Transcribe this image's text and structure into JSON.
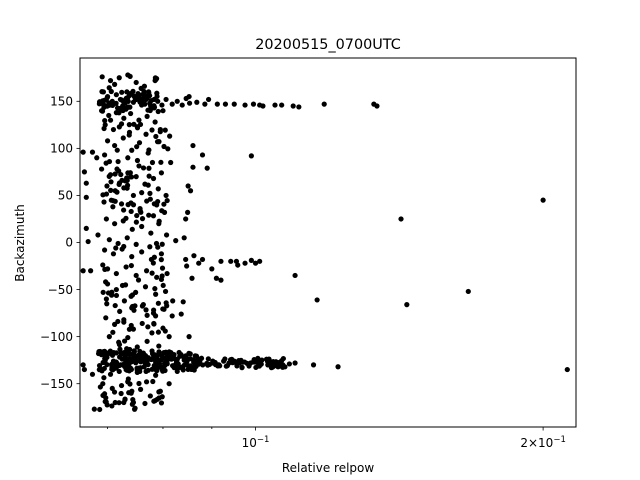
{
  "chart_data": {
    "type": "scatter",
    "title": "20200515_0700UTC",
    "xlabel": "Relative relpow",
    "ylabel": "Backazimuth",
    "x_scale": "log",
    "xlim": [
      0.0655,
      0.2165
    ],
    "ylim": [
      -196,
      196
    ],
    "x_ticks": [
      {
        "value": 0.1,
        "base": "10",
        "exp": "−1"
      },
      {
        "value": 0.2,
        "coef": "2×",
        "base": "10",
        "exp": "−1"
      }
    ],
    "x_minor_ticks": [
      0.07,
      0.08,
      0.09
    ],
    "y_ticks": [
      {
        "value": 150,
        "label": "150"
      },
      {
        "value": 100,
        "label": "100"
      },
      {
        "value": 50,
        "label": "50"
      },
      {
        "value": 0,
        "label": "0"
      },
      {
        "value": -50,
        "label": "−50"
      },
      {
        "value": -100,
        "label": "−100"
      },
      {
        "value": -150,
        "label": "−150"
      }
    ],
    "grid": false,
    "legend": "none",
    "marker_color": "#000000",
    "points": [
      [
        0.0691,
        176
      ],
      [
        0.0705,
        172
      ],
      [
        0.0712,
        168
      ],
      [
        0.072,
        175
      ],
      [
        0.0735,
        178
      ],
      [
        0.075,
        170
      ],
      [
        0.0765,
        166
      ],
      [
        0.0785,
        172
      ],
      [
        0.0693,
        160
      ],
      [
        0.07,
        155
      ],
      [
        0.0708,
        150
      ],
      [
        0.0715,
        157
      ],
      [
        0.0722,
        152
      ],
      [
        0.073,
        148
      ],
      [
        0.0738,
        158
      ],
      [
        0.0745,
        149
      ],
      [
        0.0752,
        154
      ],
      [
        0.076,
        146
      ],
      [
        0.0768,
        152
      ],
      [
        0.0775,
        148
      ],
      [
        0.0783,
        143
      ],
      [
        0.079,
        150
      ],
      [
        0.0798,
        146
      ],
      [
        0.0806,
        152
      ],
      [
        0.0818,
        147
      ],
      [
        0.0828,
        150
      ],
      [
        0.0838,
        146
      ],
      [
        0.0846,
        153
      ],
      [
        0.0853,
        148
      ],
      [
        0.0868,
        149
      ],
      [
        0.0885,
        147
      ],
      [
        0.0893,
        152
      ],
      [
        0.0912,
        147
      ],
      [
        0.093,
        147
      ],
      [
        0.095,
        147
      ],
      [
        0.0975,
        146
      ],
      [
        0.0995,
        147
      ],
      [
        0.101,
        146
      ],
      [
        0.1018,
        145
      ],
      [
        0.1048,
        146
      ],
      [
        0.1065,
        146
      ],
      [
        0.1095,
        145
      ],
      [
        0.111,
        144
      ],
      [
        0.118,
        147
      ],
      [
        0.133,
        147
      ],
      [
        0.134,
        145
      ],
      [
        0.0852,
        155
      ],
      [
        0.069,
        140
      ],
      [
        0.0702,
        135
      ],
      [
        0.0715,
        138
      ],
      [
        0.0728,
        132
      ],
      [
        0.074,
        137
      ],
      [
        0.0755,
        130
      ],
      [
        0.077,
        134
      ],
      [
        0.0785,
        128
      ],
      [
        0.08,
        140
      ],
      [
        0.0696,
        125
      ],
      [
        0.071,
        120
      ],
      [
        0.0724,
        126
      ],
      [
        0.0738,
        117
      ],
      [
        0.0752,
        123
      ],
      [
        0.0768,
        115
      ],
      [
        0.0795,
        120
      ],
      [
        0.0813,
        113
      ],
      [
        0.07,
        108
      ],
      [
        0.0712,
        103
      ],
      [
        0.0727,
        111
      ],
      [
        0.0742,
        98
      ],
      [
        0.0756,
        106
      ],
      [
        0.0772,
        95
      ],
      [
        0.0802,
        102
      ],
      [
        0.066,
        96
      ],
      [
        0.0675,
        96
      ],
      [
        0.0682,
        90
      ],
      [
        0.0695,
        93
      ],
      [
        0.0718,
        86
      ],
      [
        0.0735,
        90
      ],
      [
        0.078,
        85
      ],
      [
        0.0815,
        85
      ],
      [
        0.086,
        103
      ],
      [
        0.088,
        93
      ],
      [
        0.086,
        80
      ],
      [
        0.089,
        79
      ],
      [
        0.099,
        92
      ],
      [
        0.069,
        78
      ],
      [
        0.0705,
        72
      ],
      [
        0.0719,
        76
      ],
      [
        0.0734,
        66
      ],
      [
        0.075,
        70
      ],
      [
        0.0766,
        62
      ],
      [
        0.0782,
        68
      ],
      [
        0.0797,
        74
      ],
      [
        0.0662,
        75
      ],
      [
        0.0665,
        63
      ],
      [
        0.0699,
        60
      ],
      [
        0.0713,
        55
      ],
      [
        0.0728,
        58
      ],
      [
        0.0745,
        50
      ],
      [
        0.076,
        53
      ],
      [
        0.0776,
        46
      ],
      [
        0.0791,
        57
      ],
      [
        0.0806,
        50
      ],
      [
        0.085,
        60
      ],
      [
        0.0855,
        55
      ],
      [
        0.0665,
        48
      ],
      [
        0.0694,
        43
      ],
      [
        0.0709,
        38
      ],
      [
        0.0724,
        41
      ],
      [
        0.0741,
        33
      ],
      [
        0.0757,
        36
      ],
      [
        0.0773,
        29
      ],
      [
        0.0788,
        40
      ],
      [
        0.0803,
        32
      ],
      [
        0.0849,
        32
      ],
      [
        0.0845,
        25
      ],
      [
        0.0698,
        25
      ],
      [
        0.0712,
        20
      ],
      [
        0.0727,
        23
      ],
      [
        0.0743,
        14
      ],
      [
        0.076,
        17
      ],
      [
        0.0777,
        10
      ],
      [
        0.0792,
        20
      ],
      [
        0.0807,
        8
      ],
      [
        0.0825,
        2
      ],
      [
        0.0842,
        5
      ],
      [
        0.0665,
        15
      ],
      [
        0.0684,
        8
      ],
      [
        0.0668,
        1
      ],
      [
        0.0703,
        3
      ],
      [
        0.0718,
        -1
      ],
      [
        0.0734,
        5
      ],
      [
        0.075,
        -2
      ],
      [
        0.079,
        -5
      ],
      [
        0.142,
        25
      ],
      [
        0.2,
        45
      ],
      [
        0.0695,
        -8
      ],
      [
        0.071,
        -12
      ],
      [
        0.0725,
        -7
      ],
      [
        0.0742,
        -15
      ],
      [
        0.076,
        -10
      ],
      [
        0.0778,
        -18
      ],
      [
        0.0797,
        -12
      ],
      [
        0.0845,
        -18
      ],
      [
        0.0862,
        -14
      ],
      [
        0.0872,
        -22
      ],
      [
        0.088,
        -18
      ],
      [
        0.09,
        -28
      ],
      [
        0.092,
        -20
      ],
      [
        0.0942,
        -20
      ],
      [
        0.0955,
        -20
      ],
      [
        0.0958,
        -24
      ],
      [
        0.0975,
        -22
      ],
      [
        0.099,
        -19
      ],
      [
        0.1,
        -22
      ],
      [
        0.101,
        -20
      ],
      [
        0.066,
        -30
      ],
      [
        0.0672,
        -30
      ],
      [
        0.07,
        -28
      ],
      [
        0.0715,
        -33
      ],
      [
        0.0732,
        -26
      ],
      [
        0.075,
        -35
      ],
      [
        0.0769,
        -30
      ],
      [
        0.0788,
        -37
      ],
      [
        0.0808,
        -33
      ],
      [
        0.0847,
        -25
      ],
      [
        0.0858,
        -38
      ],
      [
        0.091,
        -38
      ],
      [
        0.092,
        -40
      ],
      [
        0.11,
        -35
      ],
      [
        0.07,
        -44
      ],
      [
        0.0715,
        -50
      ],
      [
        0.0731,
        -45
      ],
      [
        0.0749,
        -53
      ],
      [
        0.0767,
        -47
      ],
      [
        0.0786,
        -55
      ],
      [
        0.0805,
        -52
      ],
      [
        0.116,
        -61
      ],
      [
        0.144,
        -66
      ],
      [
        0.167,
        -52
      ],
      [
        0.0698,
        -60
      ],
      [
        0.0713,
        -67
      ],
      [
        0.0729,
        -62
      ],
      [
        0.0746,
        -72
      ],
      [
        0.0763,
        -66
      ],
      [
        0.0782,
        -75
      ],
      [
        0.0802,
        -71
      ],
      [
        0.0819,
        -62
      ],
      [
        0.084,
        -63
      ],
      [
        0.0697,
        -80
      ],
      [
        0.0712,
        -87
      ],
      [
        0.0728,
        -82
      ],
      [
        0.0745,
        -92
      ],
      [
        0.0761,
        -86
      ],
      [
        0.0779,
        -96
      ],
      [
        0.08,
        -91
      ],
      [
        0.0818,
        -78
      ],
      [
        0.0836,
        -76
      ],
      [
        0.0703,
        -100
      ],
      [
        0.0719,
        -106
      ],
      [
        0.0735,
        -101
      ],
      [
        0.0752,
        -111
      ],
      [
        0.077,
        -105
      ],
      [
        0.0792,
        -110
      ],
      [
        0.0812,
        -100
      ],
      [
        0.0852,
        -100
      ],
      [
        0.0685,
        -118
      ],
      [
        0.0699,
        -122
      ],
      [
        0.071,
        -126
      ],
      [
        0.0722,
        -130
      ],
      [
        0.0734,
        -124
      ],
      [
        0.0746,
        -119
      ],
      [
        0.0758,
        -133
      ],
      [
        0.077,
        -126
      ],
      [
        0.0782,
        -122
      ],
      [
        0.0794,
        -131
      ],
      [
        0.0806,
        -127
      ],
      [
        0.0818,
        -123
      ],
      [
        0.083,
        -129
      ],
      [
        0.0842,
        -125
      ],
      [
        0.0854,
        -131
      ],
      [
        0.0866,
        -127
      ],
      [
        0.0878,
        -123
      ],
      [
        0.089,
        -129
      ],
      [
        0.0902,
        -126
      ],
      [
        0.0914,
        -130
      ],
      [
        0.0926,
        -126
      ],
      [
        0.0938,
        -128
      ],
      [
        0.095,
        -126
      ],
      [
        0.0962,
        -128
      ],
      [
        0.0974,
        -127
      ],
      [
        0.0986,
        -129
      ],
      [
        0.0998,
        -127
      ],
      [
        0.1012,
        -128
      ],
      [
        0.103,
        -130
      ],
      [
        0.105,
        -129
      ],
      [
        0.1068,
        -130
      ],
      [
        0.1085,
        -129
      ],
      [
        0.11,
        -128
      ],
      [
        0.115,
        -130
      ],
      [
        0.122,
        -132
      ],
      [
        0.212,
        -135
      ],
      [
        0.069,
        -135
      ],
      [
        0.0705,
        -140
      ],
      [
        0.072,
        -137
      ],
      [
        0.0736,
        -145
      ],
      [
        0.0752,
        -138
      ],
      [
        0.0769,
        -148
      ],
      [
        0.0786,
        -141
      ],
      [
        0.0804,
        -136
      ],
      [
        0.0822,
        -133
      ],
      [
        0.066,
        -130
      ],
      [
        0.0662,
        -135
      ],
      [
        0.0675,
        -140
      ],
      [
        0.0692,
        -150
      ],
      [
        0.0708,
        -155
      ],
      [
        0.0724,
        -152
      ],
      [
        0.0741,
        -160
      ],
      [
        0.0758,
        -156
      ],
      [
        0.0776,
        -163
      ],
      [
        0.0795,
        -158
      ],
      [
        0.0812,
        -150
      ],
      [
        0.0697,
        -165
      ],
      [
        0.0713,
        -170
      ],
      [
        0.073,
        -167
      ],
      [
        0.0748,
        -176
      ],
      [
        0.0766,
        -171
      ],
      [
        0.0785,
        -168
      ],
      [
        0.0678,
        -177
      ]
    ],
    "dense_bands": [
      {
        "x_min": 0.0685,
        "x_max": 0.079,
        "y_center": 150,
        "y_spread": 11,
        "count": 60
      },
      {
        "x_min": 0.0685,
        "x_max": 0.087,
        "y_center": -126,
        "y_spread": 11,
        "count": 190
      },
      {
        "x_min": 0.086,
        "x_max": 0.108,
        "y_center": -128,
        "y_spread": 5,
        "count": 80
      },
      {
        "x_min": 0.069,
        "x_max": 0.081,
        "y_center": 100,
        "y_spread": 80,
        "count": 90
      },
      {
        "x_min": 0.069,
        "x_max": 0.081,
        "y_center": -60,
        "y_spread": 60,
        "count": 60
      },
      {
        "x_min": 0.0685,
        "x_max": 0.08,
        "y_center": -160,
        "y_spread": 18,
        "count": 30
      }
    ]
  }
}
